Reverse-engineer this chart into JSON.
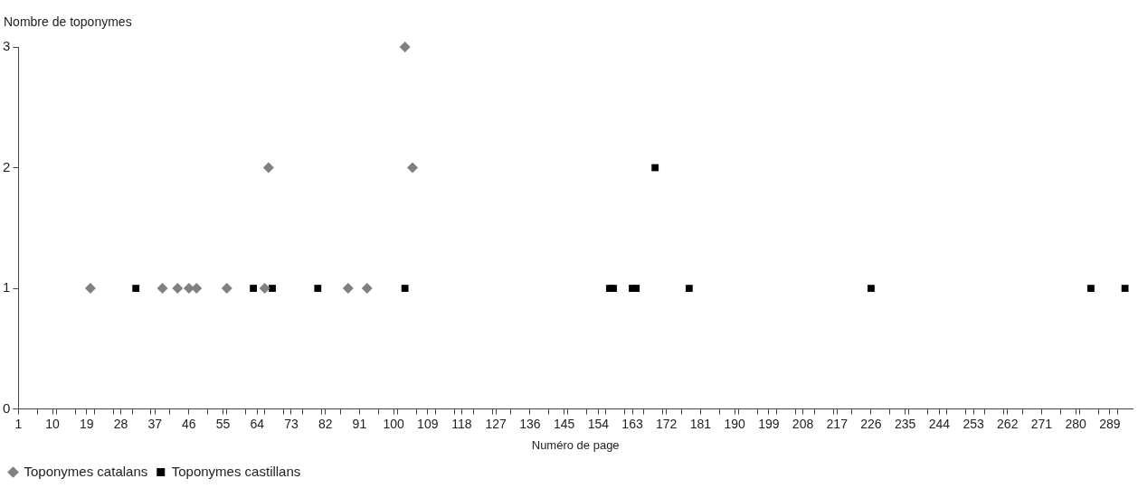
{
  "chart_data": {
    "type": "scatter",
    "xlabel": "Numéro de page",
    "ylabel": "Nombre de toponymes",
    "xlim": [
      1,
      295
    ],
    "xticks": [
      1,
      {
        "value": 6,
        "label": null
      },
      10,
      {
        "value": 11,
        "label": null
      },
      {
        "value": 16,
        "label": null
      },
      19,
      {
        "value": 21,
        "label": null
      },
      {
        "value": 26,
        "label": null
      },
      28,
      {
        "value": 31,
        "label": null
      },
      {
        "value": 36,
        "label": null
      },
      37,
      {
        "value": 41,
        "label": null
      },
      46,
      {
        "value": 51,
        "label": null
      },
      55,
      {
        "value": 56,
        "label": null
      },
      {
        "value": 61,
        "label": null
      },
      64,
      {
        "value": 66,
        "label": null
      },
      {
        "value": 71,
        "label": null
      },
      73,
      {
        "value": 76,
        "label": null
      },
      {
        "value": 81,
        "label": null
      },
      82,
      {
        "value": 86,
        "label": null
      },
      91,
      {
        "value": 96,
        "label": null
      },
      100,
      {
        "value": 101,
        "label": null
      },
      {
        "value": 106,
        "label": null
      },
      109,
      {
        "value": 111,
        "label": null
      },
      {
        "value": 116,
        "label": null
      },
      118,
      {
        "value": 121,
        "label": null
      },
      {
        "value": 126,
        "label": null
      },
      127,
      {
        "value": 131,
        "label": null
      },
      136,
      {
        "value": 141,
        "label": null
      },
      145,
      {
        "value": 146,
        "label": null
      },
      {
        "value": 151,
        "label": null
      },
      154,
      {
        "value": 156,
        "label": null
      },
      {
        "value": 161,
        "label": null
      },
      163,
      {
        "value": 166,
        "label": null
      },
      {
        "value": 171,
        "label": null
      },
      172,
      {
        "value": 176,
        "label": null
      },
      181,
      {
        "value": 186,
        "label": null
      },
      190,
      {
        "value": 191,
        "label": null
      },
      {
        "value": 196,
        "label": null
      },
      199,
      {
        "value": 201,
        "label": null
      },
      {
        "value": 206,
        "label": null
      },
      208,
      {
        "value": 211,
        "label": null
      },
      {
        "value": 216,
        "label": null
      },
      217,
      {
        "value": 221,
        "label": null
      },
      226,
      {
        "value": 231,
        "label": null
      },
      235,
      {
        "value": 236,
        "label": null
      },
      {
        "value": 241,
        "label": null
      },
      244,
      {
        "value": 246,
        "label": null
      },
      {
        "value": 251,
        "label": null
      },
      253,
      {
        "value": 256,
        "label": null
      },
      {
        "value": 261,
        "label": null
      },
      262,
      {
        "value": 266,
        "label": null
      },
      271,
      {
        "value": 276,
        "label": null
      },
      280,
      {
        "value": 281,
        "label": null
      },
      {
        "value": 286,
        "label": null
      },
      289,
      {
        "value": 291,
        "label": null
      }
    ],
    "ylim": [
      0,
      3
    ],
    "yticks": [
      0,
      1,
      2,
      3
    ],
    "grid": false,
    "legend": "bottom left",
    "series": [
      {
        "name": "Toponymes catalans",
        "color": "#808080",
        "marker": "diamond",
        "x": [
          20,
          39,
          43,
          46,
          48,
          56,
          66,
          67,
          88,
          93,
          103,
          105
        ],
        "values": [
          1,
          1,
          1,
          1,
          1,
          1,
          1,
          2,
          1,
          1,
          3,
          2
        ]
      },
      {
        "name": "Toponymes castillans",
        "color": "#000000",
        "marker": "square",
        "x": [
          32,
          63,
          68,
          80,
          103,
          157,
          158,
          163,
          164,
          169,
          178,
          226,
          284,
          293
        ],
        "values": [
          1,
          1,
          1,
          1,
          1,
          1,
          1,
          1,
          1,
          2,
          1,
          1,
          1,
          1
        ]
      }
    ]
  }
}
